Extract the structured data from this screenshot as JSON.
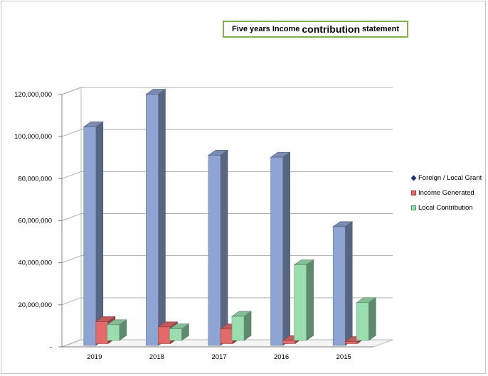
{
  "chart_data": {
    "type": "bar",
    "title_parts": [
      "Five years Income",
      "contribution",
      "statement"
    ],
    "categories": [
      "2019",
      "2018",
      "2017",
      "2016",
      "2015"
    ],
    "series": [
      {
        "name": "Foreign / Local Grant",
        "color": "#8ea4d2",
        "values": [
          104000000,
          119500000,
          90500000,
          89500000,
          56500000
        ]
      },
      {
        "name": "Income Generated",
        "color": "#e46a6a",
        "values": [
          10500000,
          8000000,
          7000000,
          1500000,
          1000000
        ]
      },
      {
        "name": "Local Contribution",
        "color": "#9adeb0",
        "values": [
          7500000,
          5500000,
          11500000,
          36000000,
          18000000
        ]
      }
    ],
    "ylim": [
      0,
      120000000
    ],
    "yticks": [
      {
        "value": 0,
        "label": "-"
      },
      {
        "value": 20000000,
        "label": "20,000,000"
      },
      {
        "value": 40000000,
        "label": "40,000,000"
      },
      {
        "value": 60000000,
        "label": "60,000,000"
      },
      {
        "value": 80000000,
        "label": "80,000,000"
      },
      {
        "value": 100000000,
        "label": "100,000,000"
      },
      {
        "value": 120000000,
        "label": "120,000,000"
      }
    ],
    "grid": true,
    "legend_position": "right"
  }
}
